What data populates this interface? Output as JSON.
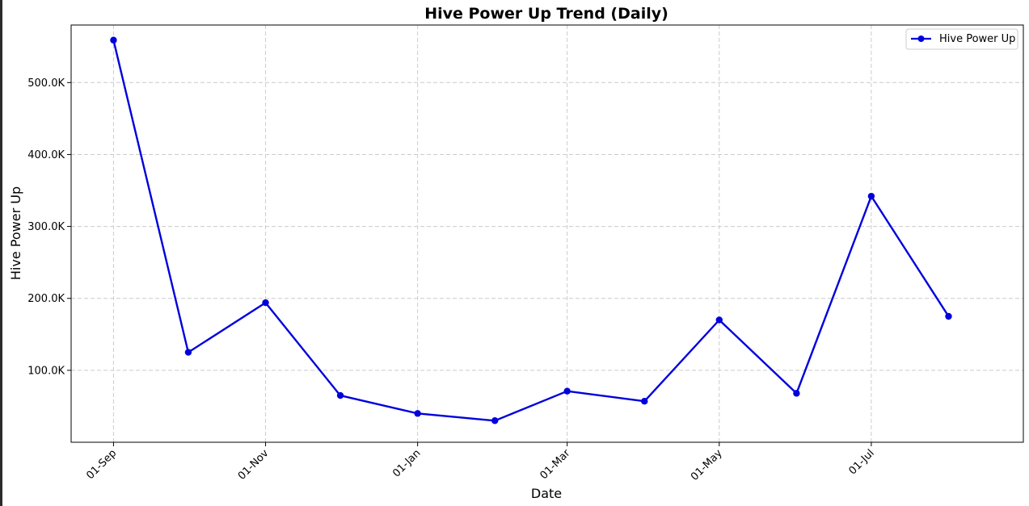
{
  "chart_data": {
    "type": "line",
    "title": "Hive Power Up Trend (Daily)",
    "xlabel": "Date",
    "ylabel": "Hive Power Up",
    "x": [
      "2023-09-01",
      "2023-10-01",
      "2023-11-01",
      "2023-12-01",
      "2024-01-01",
      "2024-02-01",
      "2024-03-01",
      "2024-04-01",
      "2024-05-01",
      "2024-06-01",
      "2024-07-01",
      "2024-08-01"
    ],
    "x_ticks": [
      {
        "date": "2023-09-01",
        "label": "01-Sep"
      },
      {
        "date": "2023-11-01",
        "label": "01-Nov"
      },
      {
        "date": "2024-01-01",
        "label": "01-Jan"
      },
      {
        "date": "2024-03-01",
        "label": "01-Mar"
      },
      {
        "date": "2024-05-01",
        "label": "01-May"
      },
      {
        "date": "2024-07-01",
        "label": "01-Jul"
      }
    ],
    "xlim": [
      "2023-08-15",
      "2024-08-31"
    ],
    "ylim": [
      0,
      580000
    ],
    "y_ticks": [
      {
        "value": 100000,
        "label": "100.0K"
      },
      {
        "value": 200000,
        "label": "200.0K"
      },
      {
        "value": 300000,
        "label": "300.0K"
      },
      {
        "value": 400000,
        "label": "400.0K"
      },
      {
        "value": 500000,
        "label": "500.0K"
      }
    ],
    "series": [
      {
        "name": "Hive Power Up",
        "color": "#0000dd",
        "marker": "circle",
        "values": [
          559000,
          125000,
          194000,
          65000,
          40000,
          30000,
          71000,
          57000,
          170000,
          68000,
          342000,
          175000
        ]
      }
    ],
    "grid": true,
    "legend_position": "top-right"
  }
}
